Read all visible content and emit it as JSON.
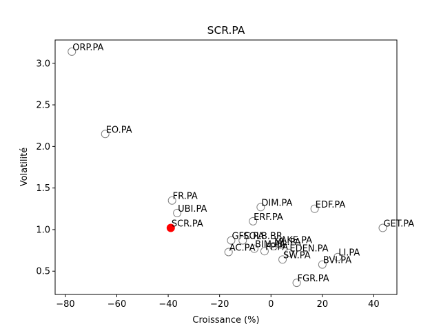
{
  "chart_data": {
    "type": "scatter",
    "title": "SCR.PA",
    "xlabel": "Croissance (%)",
    "ylabel": "Volatilité",
    "xlim": [
      -84,
      49
    ],
    "ylim": [
      0.22,
      3.28
    ],
    "xticks": [
      -80,
      -60,
      -40,
      -20,
      0,
      20,
      40
    ],
    "yticks": [
      0.5,
      1.0,
      1.5,
      2.0,
      2.5,
      3.0
    ],
    "grid": false,
    "highlight_color": "#ff0000",
    "point_edge_color": "#808080",
    "points": [
      {
        "label": "ORP.PA",
        "x": -77.5,
        "y": 3.14
      },
      {
        "label": "EO.PA",
        "x": -64.5,
        "y": 2.15
      },
      {
        "label": "FR.PA",
        "x": -38.5,
        "y": 1.35
      },
      {
        "label": "UBI.PA",
        "x": -36.5,
        "y": 1.2
      },
      {
        "label": "SCR.PA",
        "x": -39.0,
        "y": 1.02,
        "highlight": true
      },
      {
        "label": "DIM.PA",
        "x": -4.0,
        "y": 1.27
      },
      {
        "label": "EDF.PA",
        "x": 17.0,
        "y": 1.25
      },
      {
        "label": "ERF.PA",
        "x": -7.0,
        "y": 1.1
      },
      {
        "label": "GET.PA",
        "x": 43.5,
        "y": 1.02
      },
      {
        "label": "GFC.PA",
        "x": -15.5,
        "y": 0.87
      },
      {
        "label": "SOLB.BR",
        "x": -11.0,
        "y": 0.87
      },
      {
        "label": "AKE.PA",
        "x": 3.5,
        "y": 0.82
      },
      {
        "label": "ML.PA",
        "x": 1.0,
        "y": 0.8
      },
      {
        "label": "BIM.PA",
        "x": -6.5,
        "y": 0.77
      },
      {
        "label": "AC.PA",
        "x": -16.5,
        "y": 0.73
      },
      {
        "label": "FP.PA",
        "x": -2.5,
        "y": 0.74
      },
      {
        "label": "EDEN.PA",
        "x": 7.0,
        "y": 0.72
      },
      {
        "label": "SW.PA",
        "x": 4.5,
        "y": 0.64
      },
      {
        "label": "LI.PA",
        "x": 26.0,
        "y": 0.67
      },
      {
        "label": "BVI.PA",
        "x": 20.0,
        "y": 0.58
      },
      {
        "label": "FGR.PA",
        "x": 10.0,
        "y": 0.36
      }
    ]
  }
}
